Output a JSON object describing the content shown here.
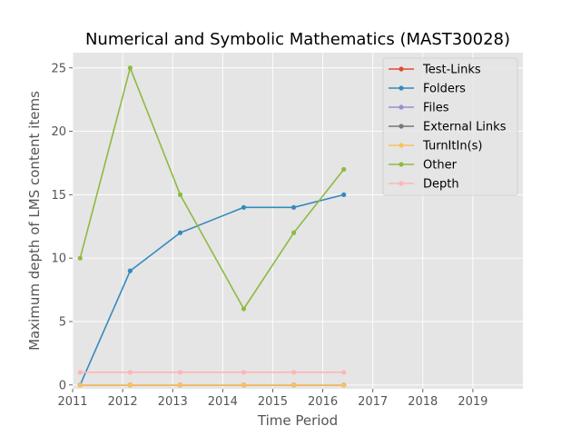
{
  "chart_data": {
    "type": "line",
    "title": "Numerical and Symbolic Mathematics (MAST30028)",
    "xlabel": "Time Period",
    "ylabel": "Maximum depth of LMS content items",
    "xlim": [
      2011.0,
      2020.0
    ],
    "ylim": [
      -0.3,
      26.2
    ],
    "xticks": [
      2011,
      2012,
      2013,
      2014,
      2015,
      2016,
      2017,
      2018,
      2019
    ],
    "yticks": [
      0,
      5,
      10,
      15,
      20,
      25
    ],
    "grid": true,
    "legend_position": "top-right",
    "x": [
      2011.15,
      2012.15,
      2013.15,
      2014.42,
      2015.42,
      2016.42
    ],
    "series": [
      {
        "name": "Test-Links",
        "color": "#E24A33",
        "values": [
          0,
          0,
          0,
          0,
          0,
          0
        ]
      },
      {
        "name": "Folders",
        "color": "#348ABD",
        "values": [
          0,
          9,
          12,
          14,
          14,
          15
        ]
      },
      {
        "name": "Files",
        "color": "#988ED5",
        "values": [
          0,
          0,
          0,
          0,
          0,
          0
        ]
      },
      {
        "name": "External Links",
        "color": "#777777",
        "values": [
          0,
          0,
          0,
          0,
          0,
          0
        ]
      },
      {
        "name": "TurnItIn(s)",
        "color": "#FBC15E",
        "values": [
          0,
          0,
          0,
          0,
          0,
          0
        ]
      },
      {
        "name": "Other",
        "color": "#8EBA42",
        "values": [
          10,
          25,
          15,
          6,
          12,
          17
        ]
      },
      {
        "name": "Depth",
        "color": "#FFB5B8",
        "values": [
          1,
          1,
          1,
          1,
          1,
          1
        ]
      }
    ]
  }
}
